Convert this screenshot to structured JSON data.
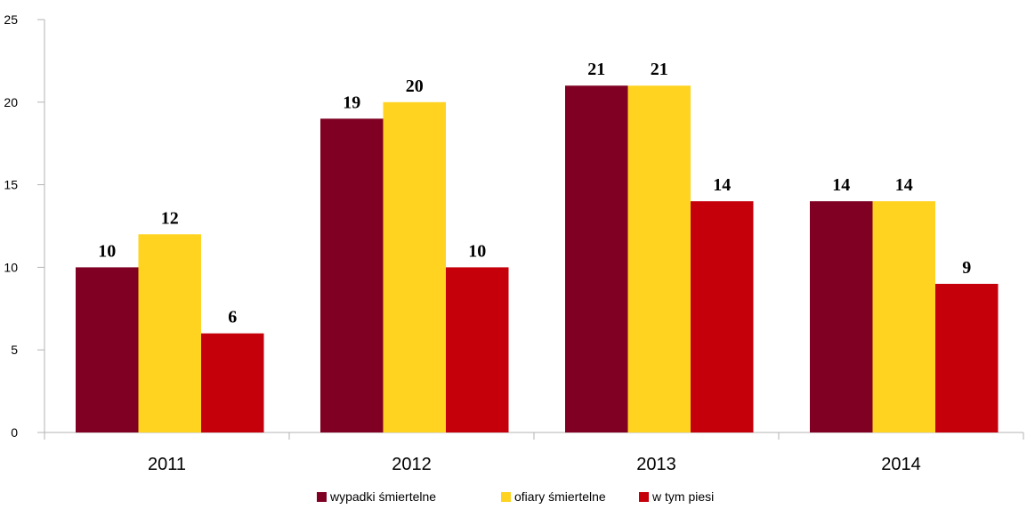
{
  "chart_data": {
    "type": "bar",
    "categories": [
      "2011",
      "2012",
      "2013",
      "2014"
    ],
    "series": [
      {
        "name": "wypadki śmiertelne",
        "values": [
          10,
          19,
          21,
          14
        ],
        "color": "#7f0022"
      },
      {
        "name": "ofiary śmiertelne",
        "values": [
          12,
          20,
          21,
          14
        ],
        "color": "#ffd320"
      },
      {
        "name": "w tym piesi",
        "values": [
          6,
          10,
          14,
          9
        ],
        "color": "#c5000b"
      }
    ],
    "ylim": [
      0,
      25
    ],
    "yticks": [
      0,
      5,
      10,
      15,
      20,
      25
    ],
    "legend_position": "bottom",
    "grid": false
  }
}
